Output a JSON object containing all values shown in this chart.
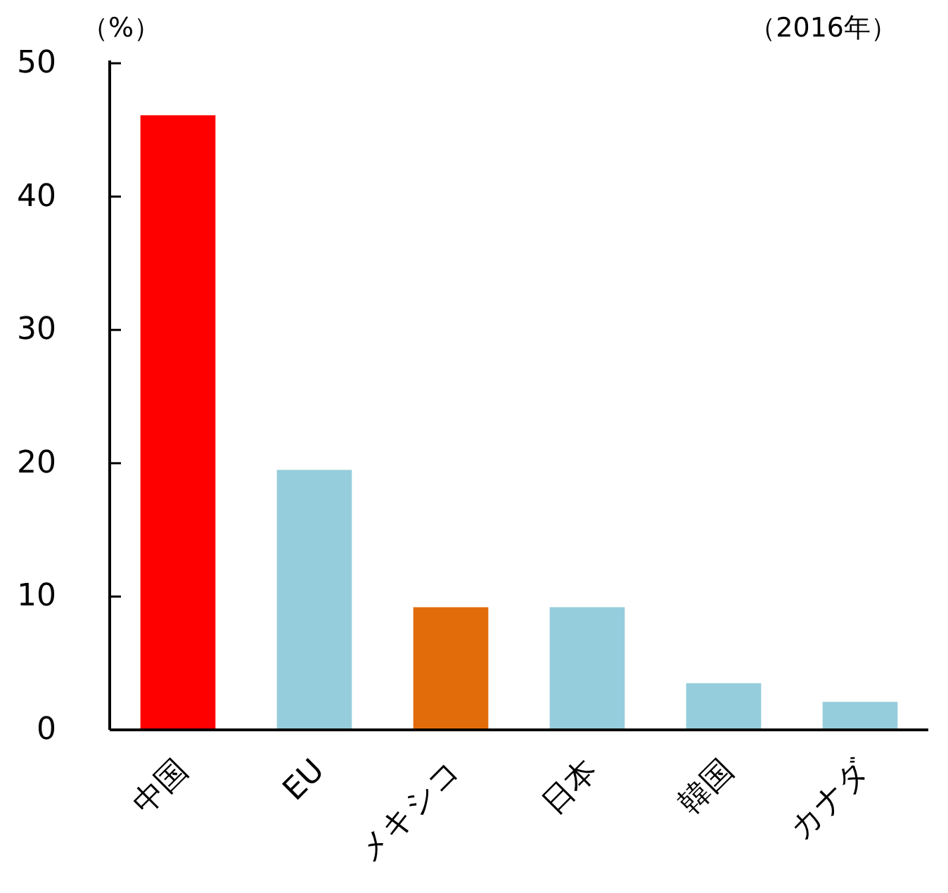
{
  "chart_data": {
    "type": "bar",
    "ylabel": "（%）",
    "annotations": [
      "（2016年）"
    ],
    "categories": [
      "中国",
      "EU",
      "メキシコ",
      "日本",
      "韓国",
      "カナダ"
    ],
    "values": [
      46.1,
      19.5,
      9.2,
      9.2,
      3.5,
      2.1
    ],
    "colors": [
      "#ff0000",
      "#96cddc",
      "#e36c0a",
      "#96cddc",
      "#96cddc",
      "#96cddc"
    ],
    "ylim": [
      0,
      50
    ],
    "yticks": [
      0,
      10,
      20,
      30,
      40,
      50
    ]
  }
}
